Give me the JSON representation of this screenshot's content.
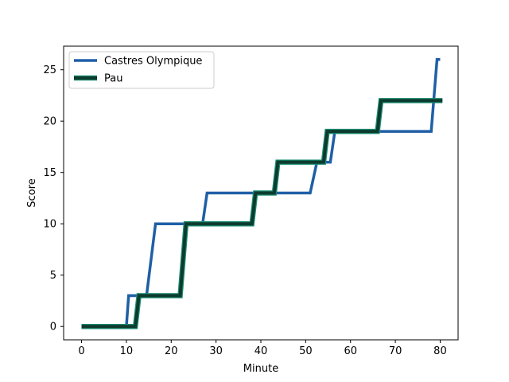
{
  "chart_data": {
    "type": "line",
    "title": "",
    "xlabel": "Minute",
    "ylabel": "Score",
    "xlim": [
      -4,
      84
    ],
    "ylim": [
      -1.3,
      27.3
    ],
    "xticks": [
      0,
      10,
      20,
      30,
      40,
      50,
      60,
      70,
      80
    ],
    "yticks": [
      0,
      5,
      10,
      15,
      20,
      25
    ],
    "grid": false,
    "legend": "top-left",
    "series": [
      {
        "name": "Castres Olympique",
        "color": "#1f5fa6",
        "style": "step",
        "points": [
          [
            0,
            0
          ],
          [
            10,
            0
          ],
          [
            10.5,
            3
          ],
          [
            14.5,
            3
          ],
          [
            16.5,
            10
          ],
          [
            27,
            10
          ],
          [
            28,
            13
          ],
          [
            51,
            13
          ],
          [
            52.5,
            16
          ],
          [
            55.5,
            16
          ],
          [
            56.5,
            19
          ],
          [
            78,
            19
          ],
          [
            79.3,
            26
          ],
          [
            80,
            26
          ]
        ]
      },
      {
        "name": "Pau",
        "color": "#0d3b2e",
        "edge_color": "#1a8c72",
        "style": "step-outlined",
        "points": [
          [
            0,
            0
          ],
          [
            12,
            0
          ],
          [
            12.8,
            3
          ],
          [
            22,
            3
          ],
          [
            23.3,
            10
          ],
          [
            38,
            10
          ],
          [
            38.8,
            13
          ],
          [
            43,
            13
          ],
          [
            43.8,
            16
          ],
          [
            54,
            16
          ],
          [
            54.8,
            19
          ],
          [
            66,
            19
          ],
          [
            66.8,
            22
          ],
          [
            80.5,
            22
          ]
        ]
      }
    ]
  }
}
